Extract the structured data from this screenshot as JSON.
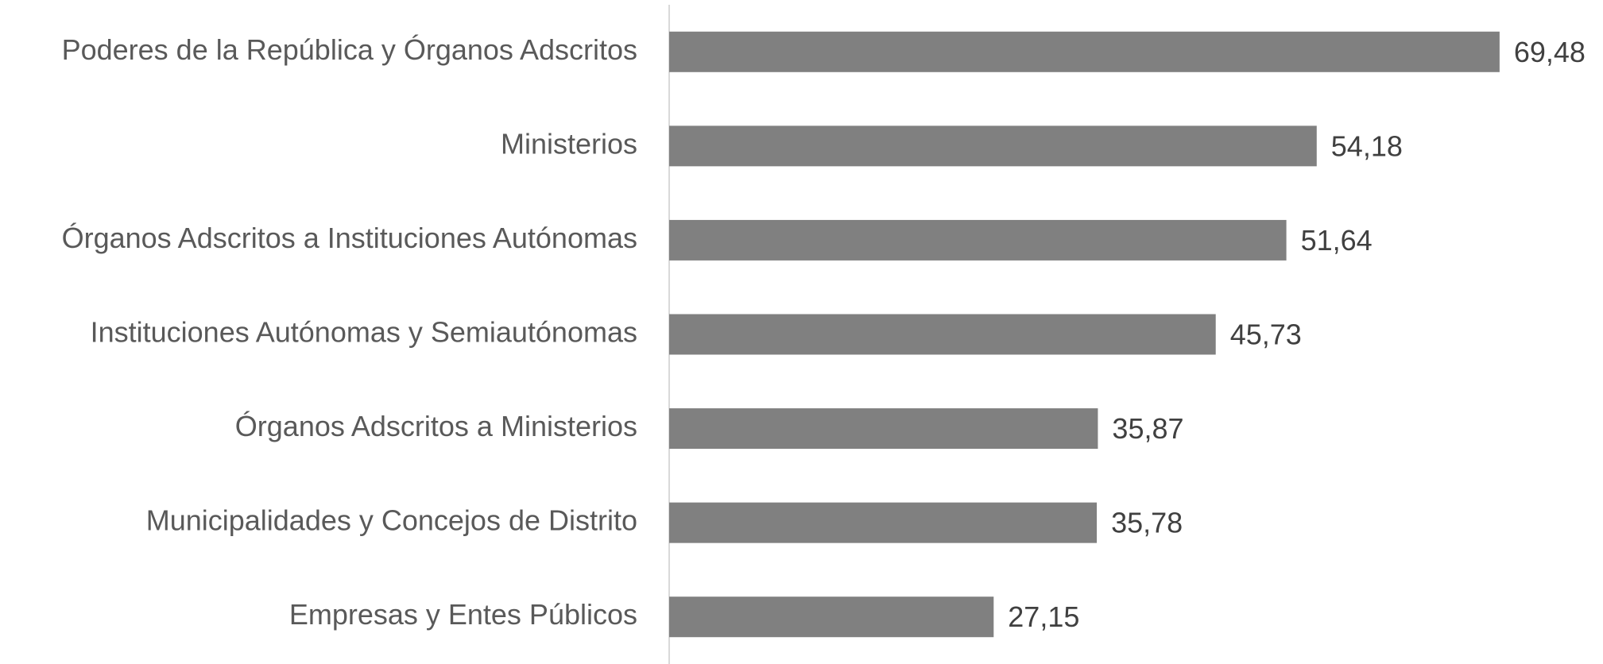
{
  "chart_data": {
    "type": "bar",
    "orientation": "horizontal",
    "categories": [
      "Poderes de la República y Órganos Adscritos",
      "Ministerios",
      "Órganos Adscritos a Instituciones Autónomas",
      "Instituciones Autónomas y Semiautónomas",
      "Órganos Adscritos a Ministerios",
      "Municipalidades y Concejos de Distrito",
      "Empresas y Entes Públicos"
    ],
    "values": [
      69.48,
      54.18,
      51.64,
      45.73,
      35.87,
      35.78,
      27.15
    ],
    "value_labels": [
      "69,48",
      "54,18",
      "51,64",
      "45,73",
      "35,87",
      "35,78",
      "27,15"
    ],
    "color": "#808080",
    "xlim": [
      0,
      78
    ]
  }
}
